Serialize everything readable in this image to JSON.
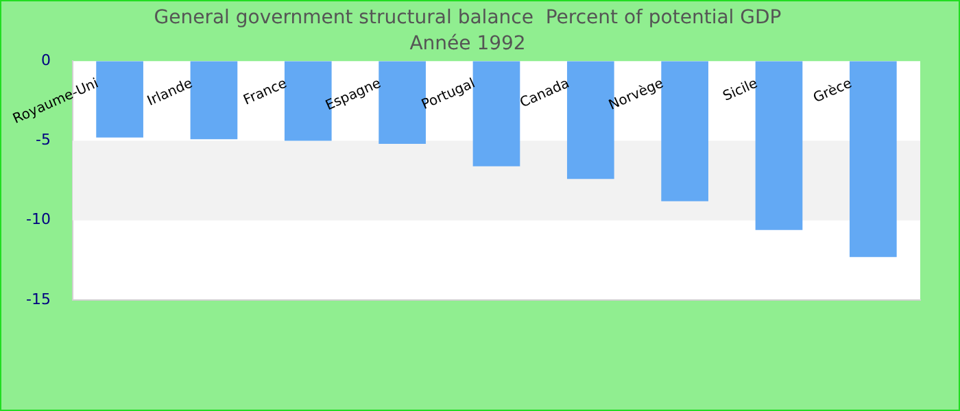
{
  "chart_data": {
    "type": "bar",
    "title": "General government structural balance  Percent of potential GDP",
    "subtitle": "Année 1992",
    "categories": [
      "Royaume-Uni",
      "Irlande",
      "France",
      "Espagne",
      "Portugal",
      "Canada",
      "Norvège",
      "Sicile",
      "Grèce"
    ],
    "values": [
      -4.8,
      -4.9,
      -5.0,
      -5.2,
      -6.6,
      -7.4,
      -8.8,
      -10.6,
      -12.3
    ],
    "color": "#63a9f4",
    "ylim": [
      -15,
      0
    ],
    "yticks": [
      -15,
      -10,
      -5,
      0
    ],
    "bands": [
      {
        "axis": "y",
        "from": -10,
        "to": -5,
        "color": "#f2f2f2"
      }
    ]
  }
}
